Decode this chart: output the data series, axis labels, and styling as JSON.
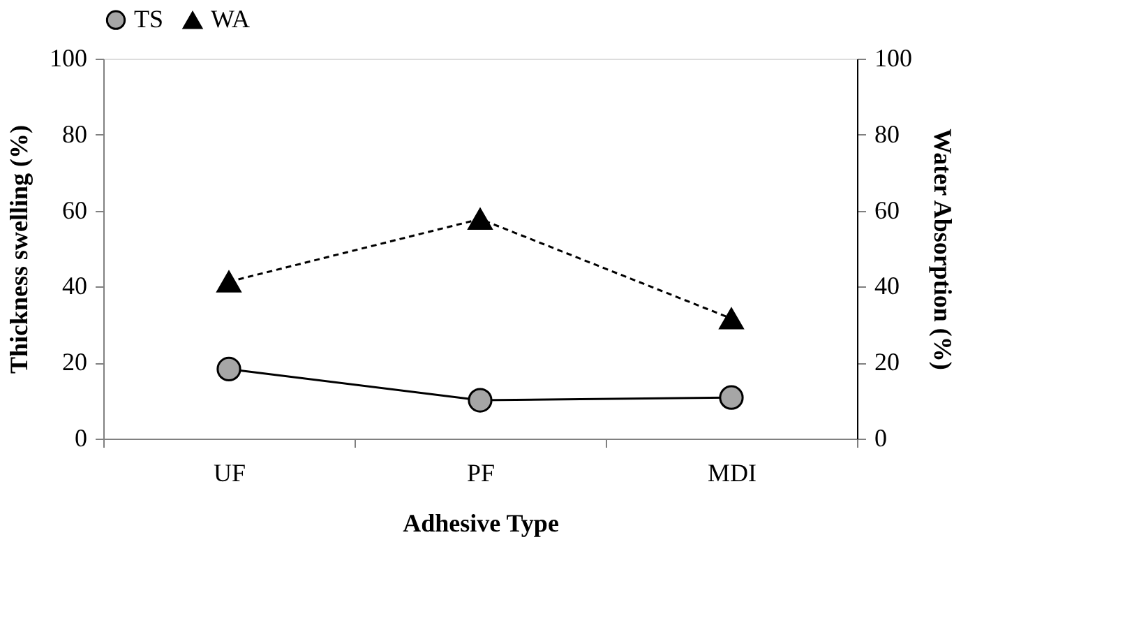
{
  "chart_data": {
    "type": "line",
    "xlabel": "Adhesive Type",
    "ylabel": "Thickness swelling (%)",
    "y2label": "Water Absorption (%)",
    "categories": [
      "UF",
      "PF",
      "MDI"
    ],
    "series": [
      {
        "name": "TS",
        "color": "#a6a6a6",
        "values": [
          18.3,
          10.1,
          10.8
        ],
        "marker": "circle",
        "line_style": "solid"
      },
      {
        "name": "WA",
        "color": "#000000",
        "values": [
          41.3,
          57.8,
          31.6
        ],
        "axis": "y2",
        "marker": "triangle",
        "line_style": "dashed"
      }
    ],
    "ylim": [
      0,
      100
    ],
    "yticks": [
      0,
      20,
      40,
      60,
      80,
      100
    ],
    "y2lim": [
      0,
      100
    ],
    "y2ticks": [
      0,
      20,
      40,
      60,
      80,
      100
    ],
    "grid": false,
    "legend": "top"
  }
}
